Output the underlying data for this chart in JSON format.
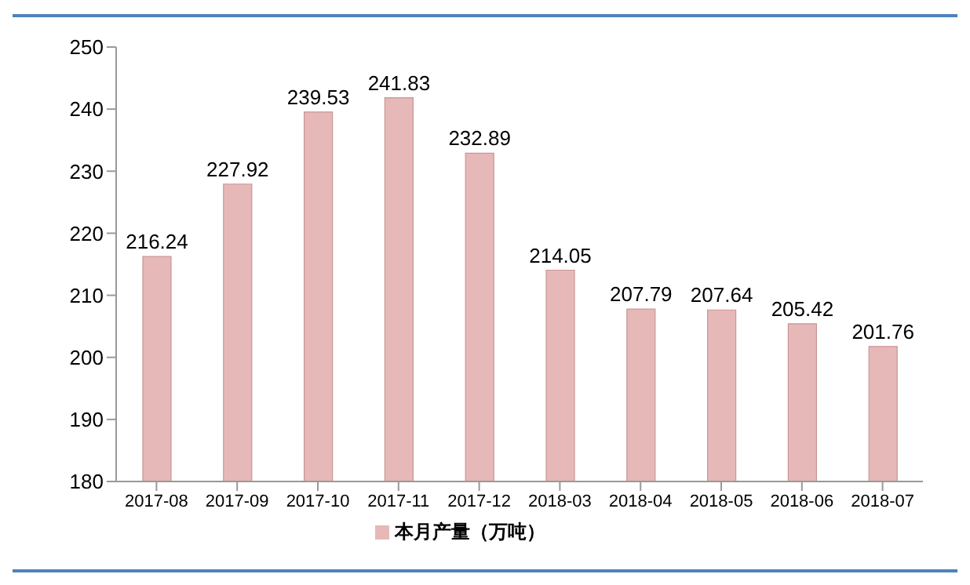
{
  "chart_data": {
    "type": "bar",
    "categories": [
      "2017-08",
      "2017-09",
      "2017-10",
      "2017-11",
      "2017-12",
      "2018-03",
      "2018-04",
      "2018-05",
      "2018-06",
      "2018-07"
    ],
    "series": [
      {
        "name": "本月产量（万吨）",
        "color": "#e6b9b8",
        "values": [
          216.24,
          227.92,
          239.53,
          241.83,
          232.89,
          214.05,
          207.79,
          207.64,
          205.42,
          201.76
        ]
      }
    ],
    "ylim": [
      180,
      250
    ],
    "yticks": [
      180,
      190,
      200,
      210,
      220,
      230,
      240,
      250
    ],
    "grid": false,
    "legend": "bottom",
    "data_labels": true
  }
}
